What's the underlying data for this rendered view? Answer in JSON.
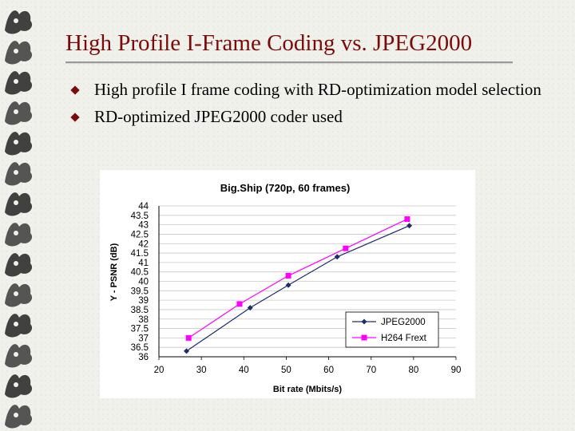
{
  "slide": {
    "title": "High Profile I-Frame Coding vs. JPEG2000",
    "bullets": [
      "High profile I frame coding with RD-optimization model selection",
      "RD-optimized JPEG2000 coder used"
    ]
  },
  "colors": {
    "title": "#7b0a0a",
    "bullet": "#7b0a0a",
    "jpeg2000": "#1f2d6b",
    "h264": "#ff00ff"
  },
  "chart_data": {
    "type": "line",
    "title": "Big.Ship (720p, 60 frames)",
    "xlabel": "Bit rate (Mbits/s)",
    "ylabel": "Y - PSNR (dB)",
    "xlim": [
      20,
      90
    ],
    "ylim": [
      36,
      44
    ],
    "x_ticks": [
      "20",
      "30",
      "40",
      "50",
      "60",
      "70",
      "80",
      "90"
    ],
    "y_ticks": [
      "36",
      "36.5",
      "37",
      "37.5",
      "38",
      "38.5",
      "39",
      "39.5",
      "40",
      "40.5",
      "41",
      "41.5",
      "42",
      "42.5",
      "43",
      "43.5",
      "44"
    ],
    "grid": "horizontal",
    "legend_position": "bottom-right",
    "series": [
      {
        "name": "JPEG2000",
        "marker": "diamond",
        "x": [
          26.5,
          41.5,
          50.5,
          62,
          79
        ],
        "y": [
          36.3,
          38.6,
          39.8,
          41.3,
          42.95
        ]
      },
      {
        "name": "H264 Frext",
        "marker": "square",
        "x": [
          27,
          39,
          50.5,
          64,
          78.5
        ],
        "y": [
          37.0,
          38.8,
          40.3,
          41.75,
          43.3
        ]
      }
    ]
  }
}
